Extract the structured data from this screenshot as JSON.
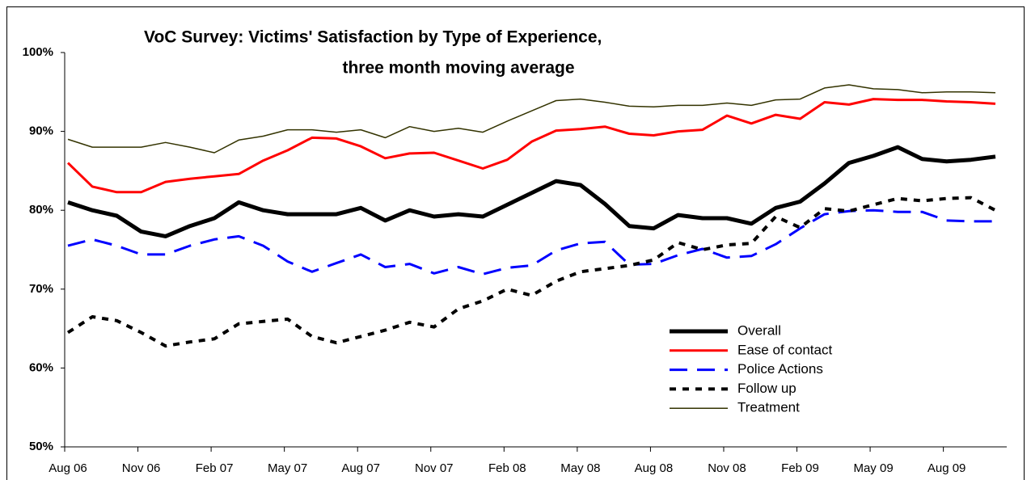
{
  "chart_data": {
    "type": "line",
    "title": [
      "VoC Survey: Victims' Satisfaction by Type of Experience,",
      "three month moving average"
    ],
    "categories": [
      "Aug 06",
      null,
      null,
      "Nov 06",
      null,
      null,
      "Feb 07",
      null,
      null,
      "May 07",
      null,
      null,
      "Aug 07",
      null,
      null,
      "Nov 07",
      null,
      null,
      "Feb 08",
      null,
      null,
      "May 08",
      null,
      null,
      "Aug 08",
      null,
      null,
      "Nov 08",
      null,
      null,
      "Feb 09",
      null,
      null,
      "May 09",
      null,
      null,
      "Aug 09",
      null,
      null
    ],
    "ylim": [
      50,
      100
    ],
    "yticks": [
      {
        "value": 50,
        "label": "50%"
      },
      {
        "value": 60,
        "label": "60%"
      },
      {
        "value": 70,
        "label": "70%"
      },
      {
        "value": 80,
        "label": "80%"
      },
      {
        "value": 90,
        "label": "90%"
      },
      {
        "value": 100,
        "label": "100%"
      }
    ],
    "grid": false,
    "legend": "lower right",
    "series": [
      {
        "name": "Overall",
        "color": "#000000",
        "width": 5,
        "dash": "solid",
        "values": [
          81,
          80,
          79.3,
          77.3,
          76.7,
          78,
          79,
          81,
          80,
          79.5,
          79.5,
          79.5,
          80.3,
          78.7,
          80,
          79.2,
          79.5,
          79.2,
          80.7,
          82.2,
          83.7,
          83.2,
          80.8,
          78,
          77.7,
          79.4,
          79,
          79,
          78.3,
          80.3,
          81.1,
          83.4,
          86,
          86.9,
          88,
          86.5,
          86.2,
          86.4,
          86.8
        ]
      },
      {
        "name": "Ease of contact",
        "color": "#ff0000",
        "width": 3,
        "dash": "solid",
        "values": [
          86,
          83,
          82.3,
          82.3,
          83.6,
          84,
          84.3,
          84.6,
          86.3,
          87.6,
          89.2,
          89.1,
          88.1,
          86.6,
          87.2,
          87.3,
          86.3,
          85.3,
          86.4,
          88.7,
          90.1,
          90.3,
          90.6,
          89.7,
          89.5,
          90,
          90.2,
          92,
          91,
          92.1,
          91.6,
          93.7,
          93.4,
          94.1,
          94,
          94,
          93.8,
          93.7,
          93.5
        ]
      },
      {
        "name": "Police Actions",
        "color": "#0000ff",
        "width": 3,
        "dash": "dashed",
        "values": [
          75.5,
          76.3,
          75.5,
          74.4,
          74.4,
          75.5,
          76.3,
          76.7,
          75.5,
          73.5,
          72.2,
          73.3,
          74.4,
          72.8,
          73.2,
          72,
          72.8,
          71.9,
          72.7,
          73,
          74.9,
          75.8,
          76,
          73.1,
          73.2,
          74.3,
          75.1,
          74,
          74.2,
          75.7,
          77.7,
          79.5,
          79.9,
          80,
          79.8,
          79.8,
          78.7,
          78.6,
          78.6
        ]
      },
      {
        "name": "Follow up",
        "color": "#000000",
        "width": 4,
        "dash": "dotted",
        "values": [
          64.5,
          66.5,
          66,
          64.5,
          62.8,
          63.3,
          63.7,
          65.6,
          65.9,
          66.2,
          64,
          63.2,
          64,
          64.8,
          65.8,
          65.2,
          67.5,
          68.5,
          70,
          69.2,
          71,
          72.2,
          72.6,
          73,
          73.7,
          75.9,
          75,
          75.6,
          75.8,
          79.2,
          77.8,
          80.2,
          79.9,
          80.7,
          81.5,
          81.2,
          81.5,
          81.6,
          80
        ]
      },
      {
        "name": "Treatment",
        "color": "#333300",
        "width": 1.5,
        "dash": "solid",
        "values": [
          89,
          88,
          88,
          88,
          88.6,
          88,
          87.3,
          88.9,
          89.4,
          90.2,
          90.2,
          89.9,
          90.2,
          89.2,
          90.6,
          90,
          90.4,
          89.9,
          91.3,
          92.6,
          93.9,
          94.1,
          93.7,
          93.2,
          93.1,
          93.3,
          93.3,
          93.6,
          93.3,
          94,
          94.1,
          95.5,
          95.9,
          95.4,
          95.3,
          94.9,
          95,
          95,
          94.9
        ]
      }
    ]
  }
}
